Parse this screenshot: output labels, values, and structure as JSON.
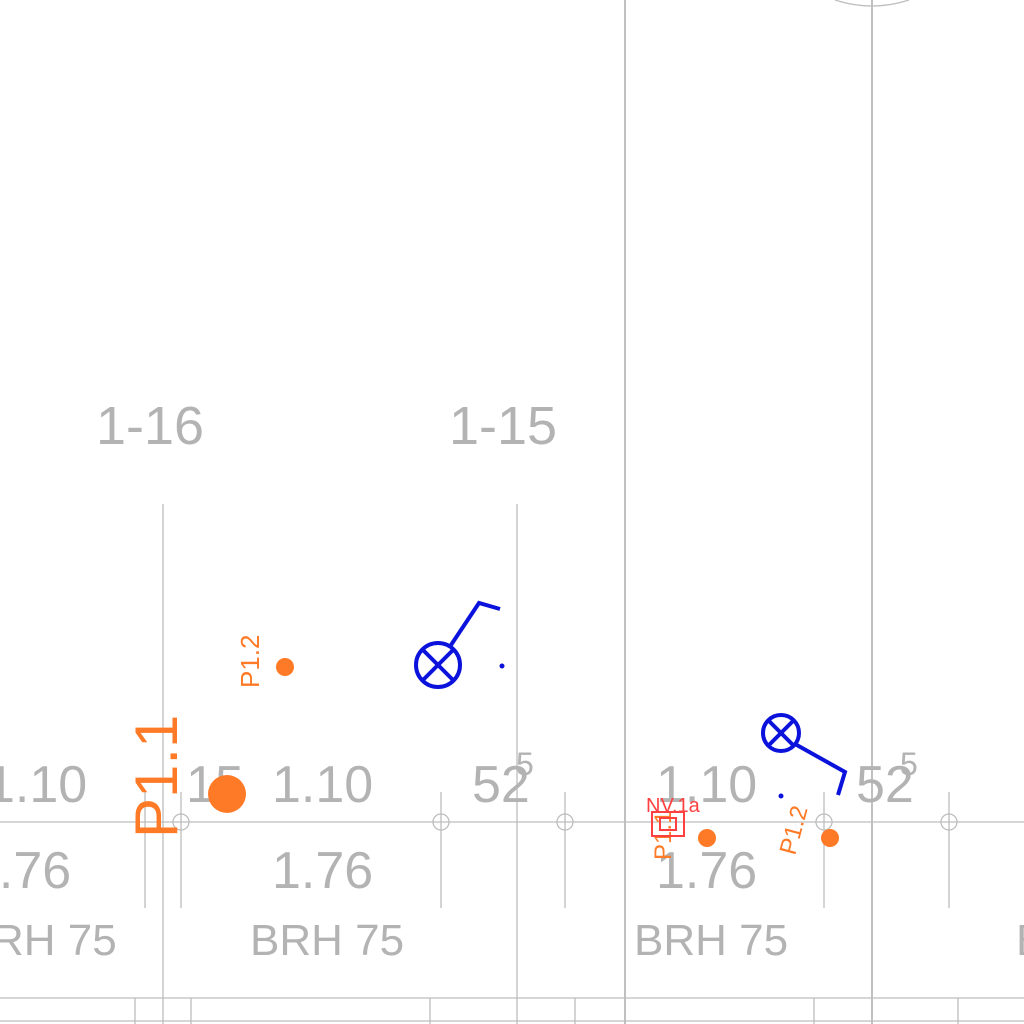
{
  "drawing": {
    "grid_axes": [
      {
        "label": "1-16"
      },
      {
        "label": "1-15"
      }
    ],
    "dimensions_top": [
      "1.10",
      "15",
      "1.10",
      "52",
      "1.10",
      "52"
    ],
    "dimension_superscript": "5",
    "dimensions_bottom": [
      "1.76",
      "1.76",
      "1.76"
    ],
    "brh_labels": [
      "BRH 75",
      "BRH 75",
      "BRH 75"
    ],
    "brh_label_partial": "RH 75",
    "pump_labels": {
      "large": "P1.1",
      "small_a": "P1.2",
      "small_b": "P1.2",
      "small_c": "P1.1",
      "red_tag": "NV.1a"
    },
    "colors": {
      "grid": "#bdbdbd",
      "text": "#b3b3b3",
      "accent_orange": "#ff7a26",
      "fixture_blue": "#0a12dc",
      "tag_red": "#ff4040"
    }
  }
}
